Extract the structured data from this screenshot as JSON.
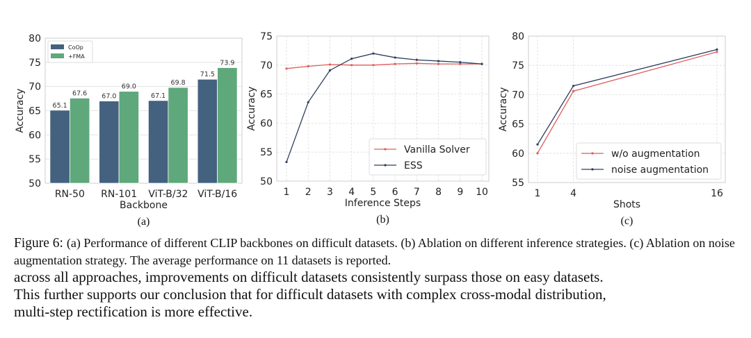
{
  "chart_data": [
    {
      "type": "bar",
      "panel_label": "(a)",
      "xlabel": "Backbone",
      "ylabel": "Accuracy",
      "ylim": [
        50,
        80
      ],
      "yticks": [
        50,
        55,
        60,
        65,
        70,
        75,
        80
      ],
      "categories": [
        "RN-50",
        "RN-101",
        "ViT-B/32",
        "ViT-B/16"
      ],
      "series": [
        {
          "name": "CoOp",
          "color": "#44627f",
          "values": [
            65.1,
            67.0,
            67.1,
            71.5
          ],
          "labels": [
            "65.1",
            "67.0",
            "67.1",
            "71.5"
          ]
        },
        {
          "name": "+FMA",
          "color": "#5fa87b",
          "values": [
            67.6,
            69.0,
            69.8,
            73.9
          ],
          "labels": [
            "67.6",
            "69.0",
            "69.8",
            "73.9"
          ]
        }
      ],
      "legend": "top-left",
      "grid": true
    },
    {
      "type": "line",
      "panel_label": "(b)",
      "xlabel": "Inference Steps",
      "ylabel": "Accuracy",
      "ylim": [
        50,
        75
      ],
      "xlim": [
        1,
        10
      ],
      "yticks": [
        50,
        55,
        60,
        65,
        70,
        75
      ],
      "x": [
        1,
        2,
        3,
        4,
        5,
        6,
        7,
        8,
        9,
        10
      ],
      "series": [
        {
          "name": "Vanilla Solver",
          "color": "#e05a5a",
          "values": [
            69.4,
            69.8,
            70.1,
            70.0,
            70.0,
            70.2,
            70.3,
            70.2,
            70.2,
            70.2
          ]
        },
        {
          "name": "ESS",
          "color": "#2c3e5c",
          "values": [
            53.3,
            63.6,
            69.1,
            71.1,
            72.0,
            71.3,
            70.9,
            70.7,
            70.5,
            70.2
          ]
        }
      ],
      "legend": "bottom-right",
      "grid": true
    },
    {
      "type": "line",
      "panel_label": "(c)",
      "xlabel": "Shots",
      "ylabel": "Accuracy",
      "ylim": [
        55,
        80
      ],
      "xlim": [
        1,
        16
      ],
      "yticks": [
        55,
        60,
        65,
        70,
        75,
        80
      ],
      "x": [
        1,
        4,
        16
      ],
      "series": [
        {
          "name": "w/o augmentation",
          "color": "#e05a5a",
          "values": [
            60.0,
            70.6,
            77.3
          ]
        },
        {
          "name": "noise augmentation",
          "color": "#2c3e5c",
          "values": [
            61.5,
            71.5,
            77.7
          ]
        }
      ],
      "legend": "bottom-right",
      "grid": true
    }
  ],
  "caption": {
    "label": "Figure 6:",
    "text": "(a) Performance of different CLIP backbones on difficult datasets. (b) Ablation on different inference strategies. (c) Ablation on noise augmentation strategy. The average performance on 11 datasets is reported."
  },
  "body_text": [
    "across all approaches, improvements on difficult datasets consistently surpass those on easy datasets.",
    "This further supports our conclusion that for difficult datasets with complex cross-modal distribution,",
    "multi-step rectification is more effective."
  ]
}
